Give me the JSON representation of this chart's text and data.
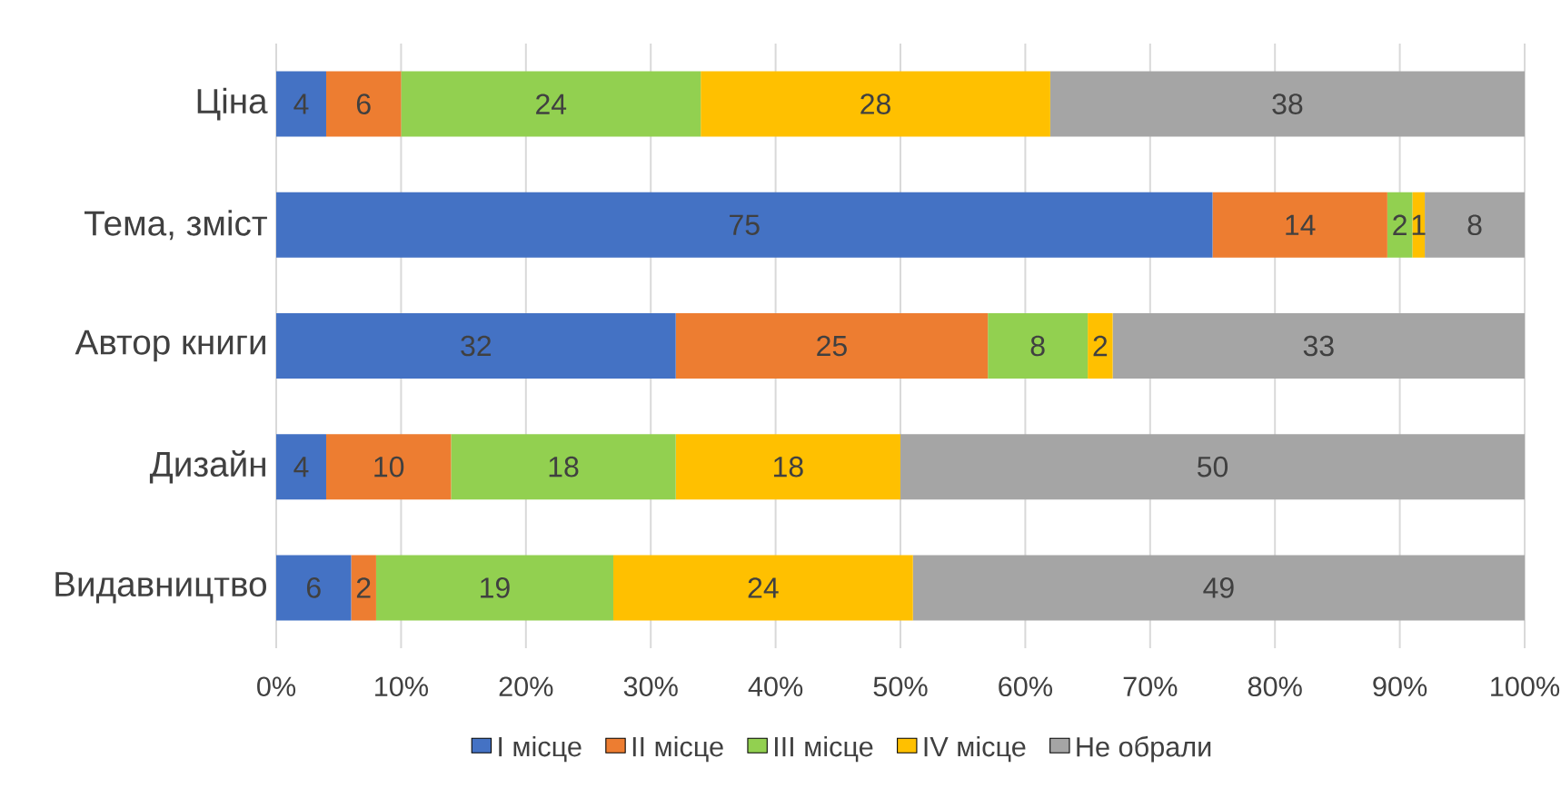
{
  "chart_data": {
    "type": "bar",
    "orientation": "horizontal",
    "stacked": true,
    "categories": [
      "Ціна",
      "Тема, зміст",
      "Автор книги",
      "Дизайн",
      "Видавництво"
    ],
    "series": [
      {
        "name": "I місце",
        "color": "#4472c4",
        "values": [
          4,
          75,
          32,
          4,
          6
        ]
      },
      {
        "name": "II місце",
        "color": "#ed7d31",
        "values": [
          6,
          14,
          25,
          10,
          2
        ]
      },
      {
        "name": "III місце",
        "color": "#92d050",
        "values": [
          24,
          2,
          8,
          18,
          19
        ]
      },
      {
        "name": "IV місце",
        "color": "#ffc000",
        "values": [
          28,
          1,
          2,
          18,
          24
        ]
      },
      {
        "name": "Не обрали",
        "color": "#a5a5a5",
        "values": [
          38,
          8,
          33,
          50,
          49
        ]
      }
    ],
    "xlim": [
      0,
      100
    ],
    "xticks": [
      {
        "value": 0,
        "label": "0%"
      },
      {
        "value": 10,
        "label": "10%"
      },
      {
        "value": 20,
        "label": "20%"
      },
      {
        "value": 30,
        "label": "30%"
      },
      {
        "value": 40,
        "label": "40%"
      },
      {
        "value": 50,
        "label": "50%"
      },
      {
        "value": 60,
        "label": "60%"
      },
      {
        "value": 70,
        "label": "70%"
      },
      {
        "value": 80,
        "label": "80%"
      },
      {
        "value": 90,
        "label": "90%"
      },
      {
        "value": 100,
        "label": "100%"
      }
    ],
    "grid": "x",
    "legend": "bottom",
    "data_labels": true
  }
}
